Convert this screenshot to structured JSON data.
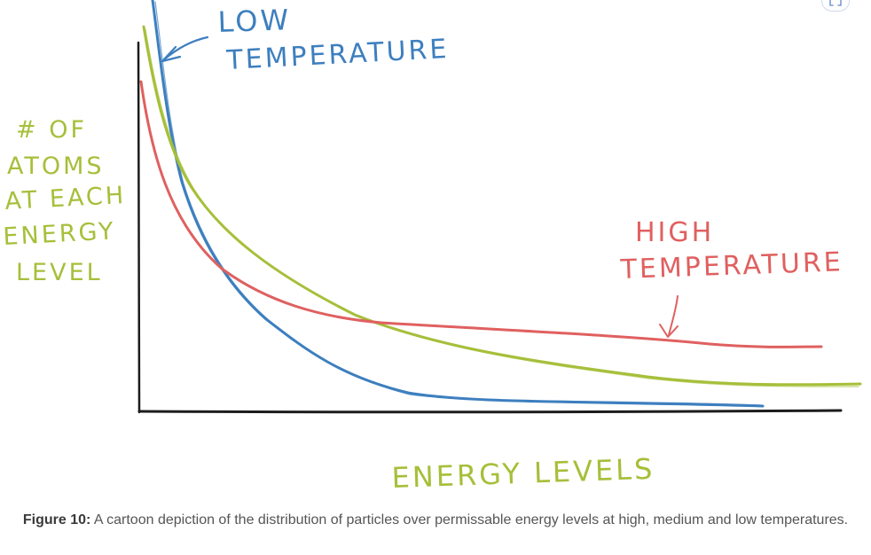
{
  "figure": {
    "y_axis_label": [
      "# OF",
      "ATOMS",
      "AT EACH",
      "ENERGY",
      "LEVEL"
    ],
    "x_axis_label": "ENERGY LEVELS",
    "annotations": {
      "low_temperature": [
        "LOW",
        "TEMPERATURE"
      ],
      "high_temperature": [
        "HIGH",
        "TEMPERATURE"
      ]
    },
    "colors": {
      "low": "#3d7fbf",
      "medium": "#a6bf3a",
      "high": "#e06060",
      "axis": "#1c1c1c",
      "label": "#a6bf3a"
    }
  },
  "caption": {
    "label": "Figure 10:",
    "text": " A cartoon depiction of the distribution of particles over permissable energy levels at high, medium and low temperatures."
  },
  "toolbar": {
    "expand_icon": "expand-icon"
  }
}
